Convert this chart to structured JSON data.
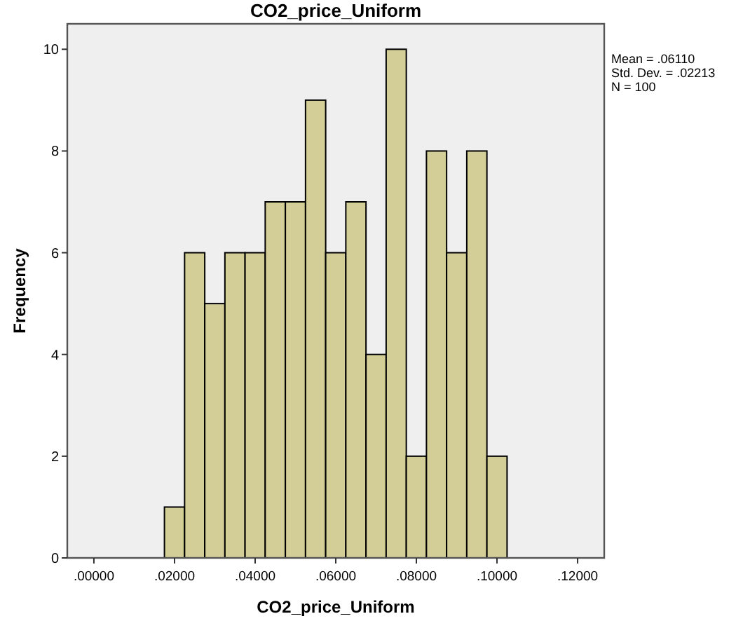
{
  "chart_data": {
    "type": "histogram",
    "title": "CO2_price_Uniform",
    "xlabel": "CO2_price_Uniform",
    "ylabel": "Frequency",
    "bins": [
      0.0175,
      0.0225,
      0.0275,
      0.0325,
      0.0375,
      0.0425,
      0.0475,
      0.0525,
      0.0575,
      0.0625,
      0.0675,
      0.0725,
      0.0775,
      0.0825,
      0.0875,
      0.0925,
      0.0975,
      0.1025
    ],
    "values": [
      1,
      6,
      5,
      6,
      6,
      7,
      7,
      9,
      6,
      7,
      4,
      10,
      2,
      8,
      6,
      8,
      2
    ],
    "color": "#d3ce98",
    "xlim": [
      -0.0066,
      0.1266
    ],
    "ylim": [
      0,
      10.5
    ],
    "xticks": [
      {
        "value": 0,
        "label": ".00000"
      },
      {
        "value": 0.02,
        "label": ".02000"
      },
      {
        "value": 0.04,
        "label": ".04000"
      },
      {
        "value": 0.06,
        "label": ".06000"
      },
      {
        "value": 0.08,
        "label": ".08000"
      },
      {
        "value": 0.1,
        "label": ".10000"
      },
      {
        "value": 0.12,
        "label": ".12000"
      }
    ],
    "yticks": [
      0,
      2,
      4,
      6,
      8,
      10
    ],
    "annotations": [
      "Mean = .06110",
      "Std. Dev. = .02213",
      "N = 100"
    ]
  }
}
